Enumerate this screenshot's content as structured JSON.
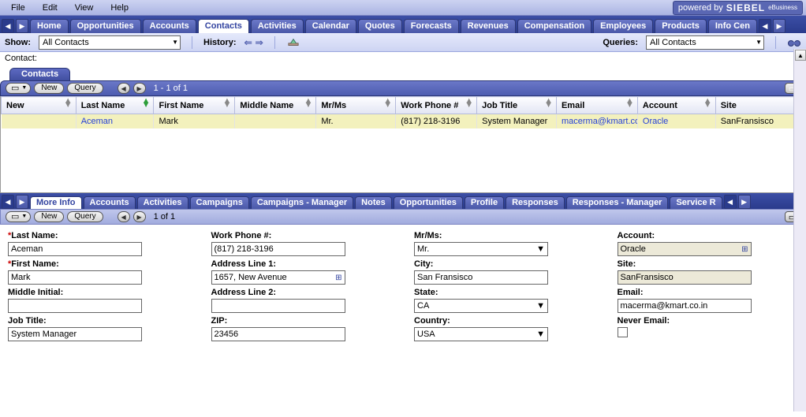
{
  "menu": {
    "items": [
      "File",
      "Edit",
      "View",
      "Help"
    ]
  },
  "powered": {
    "prefix": "powered by",
    "brand": "SIEBEL",
    "suffix": "eBusiness"
  },
  "nav": {
    "tabs": [
      "Home",
      "Opportunities",
      "Accounts",
      "Contacts",
      "Activities",
      "Calendar",
      "Quotes",
      "Forecasts",
      "Revenues",
      "Compensation",
      "Employees",
      "Products",
      "Info Cen"
    ],
    "active": "Contacts"
  },
  "showbar": {
    "show_label": "Show:",
    "show_value": "All Contacts",
    "history_label": "History:",
    "queries_label": "Queries:",
    "queries_value": "All Contacts"
  },
  "contactline": {
    "label": "Contact:"
  },
  "list_applet": {
    "tab_title": "Contacts",
    "menu_glyph": "▭",
    "btn_new": "New",
    "btn_query": "Query",
    "counter": "1 - 1 of 1",
    "columns": [
      "New",
      "Last Name",
      "First Name",
      "Middle Name",
      "Mr/Ms",
      "Work Phone #",
      "Job Title",
      "Email",
      "Account",
      "Site"
    ],
    "sort_active_col": 1,
    "rows": [
      {
        "new": "",
        "last": "Aceman",
        "first": "Mark",
        "middle": "",
        "mrms": "Mr.",
        "phone": "(817) 218-3196",
        "title": "System Manager",
        "email": "macerma@kmart.co",
        "account": "Oracle",
        "site": "SanFransisco"
      }
    ],
    "link_cols": [
      "last",
      "email",
      "account"
    ]
  },
  "subtabs": {
    "tabs": [
      "More Info",
      "Accounts",
      "Activities",
      "Campaigns",
      "Campaigns - Manager",
      "Notes",
      "Opportunities",
      "Profile",
      "Responses",
      "Responses - Manager",
      "Service R"
    ],
    "active": "More Info"
  },
  "form_applet": {
    "btn_new": "New",
    "btn_query": "Query",
    "counter": "1 of 1",
    "fields": {
      "last_name": {
        "label": "Last Name:",
        "value": "Aceman",
        "required": true
      },
      "first_name": {
        "label": "First Name:",
        "value": "Mark",
        "required": true
      },
      "middle": {
        "label": "Middle Initial:",
        "value": ""
      },
      "job_title": {
        "label": "Job Title:",
        "value": "System Manager"
      },
      "work_phone": {
        "label": "Work Phone #:",
        "value": "(817) 218-3196"
      },
      "addr1": {
        "label": "Address Line 1:",
        "value": "1657, New Avenue",
        "pick": true
      },
      "addr2": {
        "label": "Address Line 2:",
        "value": ""
      },
      "zip": {
        "label": "ZIP:",
        "value": "23456"
      },
      "mrms": {
        "label": "Mr/Ms:",
        "value": "Mr.",
        "dropdown": true
      },
      "city": {
        "label": "City:",
        "value": "San Fransisco"
      },
      "state": {
        "label": "State:",
        "value": "CA",
        "dropdown": true
      },
      "country": {
        "label": "Country:",
        "value": "USA",
        "dropdown": true
      },
      "account": {
        "label": "Account:",
        "value": "Oracle",
        "readonly": true,
        "pick": true
      },
      "site": {
        "label": "Site:",
        "value": "SanFransisco",
        "readonly": true
      },
      "email": {
        "label": "Email:",
        "value": "macerma@kmart.co.in"
      },
      "never_email": {
        "label": "Never Email:",
        "checkbox": true
      }
    }
  },
  "colors": {
    "nav_bg": "#2a3b8c",
    "nav_tab": "#4a58a8",
    "active_tab": "#ffffff",
    "row_sel": "#f3f1bd",
    "link": "#2540d8"
  }
}
